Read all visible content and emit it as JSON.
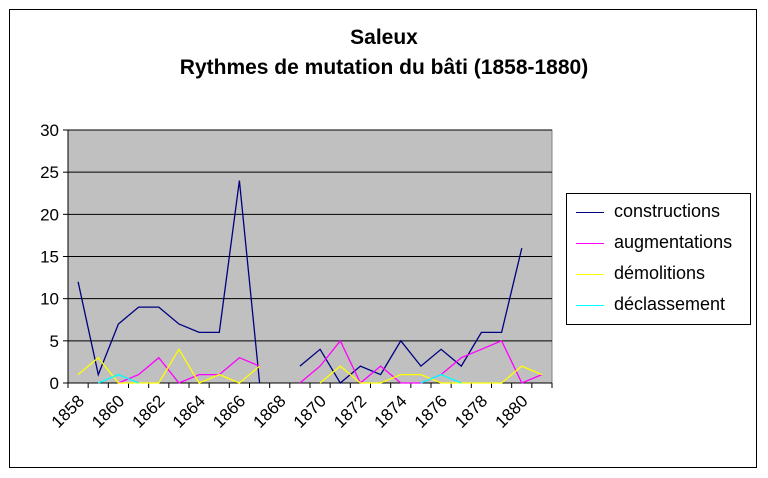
{
  "chart_data": {
    "type": "line",
    "title": "Saleux",
    "subtitle": "Rythmes de mutation du bâti (1858-1880)",
    "x": [
      1858,
      1859,
      1860,
      1861,
      1862,
      1863,
      1864,
      1865,
      1866,
      1867,
      1868,
      1869,
      1870,
      1871,
      1872,
      1873,
      1874,
      1875,
      1876,
      1877,
      1878,
      1879,
      1880,
      1881
    ],
    "x_tick_labels": [
      "1858",
      "1860",
      "1862",
      "1864",
      "1866",
      "1868",
      "1870",
      "1872",
      "1874",
      "1876",
      "1878",
      "1880"
    ],
    "ylim": [
      0,
      30
    ],
    "y_ticks": [
      "0",
      "5",
      "10",
      "15",
      "20",
      "25",
      "30"
    ],
    "grid": true,
    "legend_position": "right",
    "plot_background": "#c0c0c0",
    "series": [
      {
        "name": "constructions",
        "color": "#000080",
        "values": [
          12,
          1,
          7,
          9,
          9,
          7,
          6,
          6,
          24,
          0,
          null,
          2,
          4,
          0,
          2,
          1,
          5,
          2,
          4,
          2,
          6,
          6,
          16,
          null
        ]
      },
      {
        "name": "augmentations",
        "color": "#ff00ff",
        "values": [
          null,
          null,
          0,
          1,
          3,
          0,
          1,
          1,
          3,
          2,
          null,
          0,
          2,
          5,
          0,
          2,
          0,
          0,
          1,
          3,
          4,
          5,
          0,
          1
        ]
      },
      {
        "name": "démolitions",
        "color": "#ffff00",
        "values": [
          1,
          3,
          0,
          0,
          0,
          4,
          0,
          1,
          0,
          2,
          null,
          null,
          0,
          2,
          0,
          0,
          1,
          1,
          0,
          0,
          0,
          0,
          2,
          1
        ]
      },
      {
        "name": "déclassement",
        "color": "#00ffff",
        "values": [
          null,
          0,
          1,
          0,
          null,
          null,
          null,
          null,
          null,
          null,
          null,
          null,
          null,
          null,
          null,
          null,
          null,
          0,
          1,
          0,
          null,
          null,
          null,
          1
        ]
      }
    ]
  }
}
